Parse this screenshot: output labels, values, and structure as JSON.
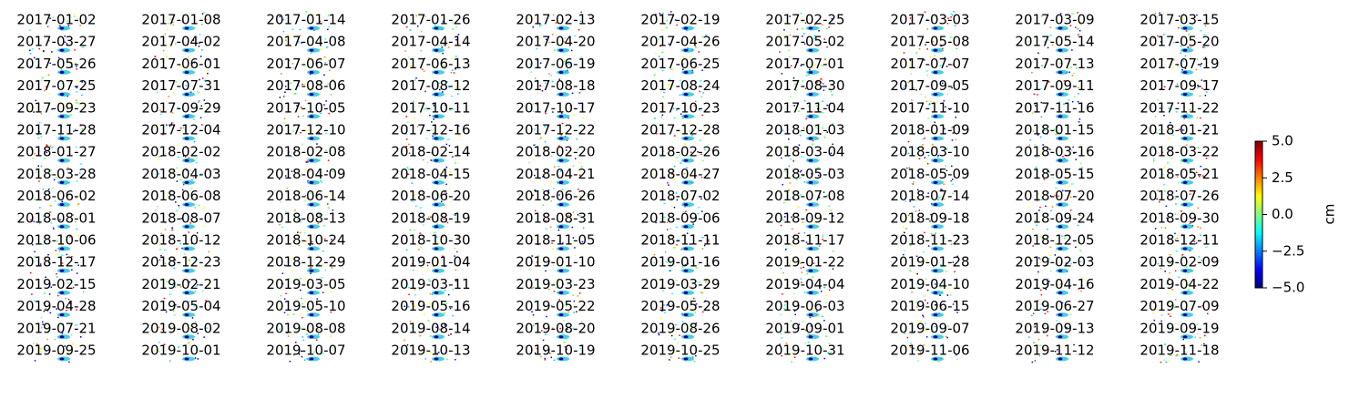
{
  "panels": [
    "2017-01-02",
    "2017-01-08",
    "2017-01-14",
    "2017-01-26",
    "2017-02-13",
    "2017-02-19",
    "2017-02-25",
    "2017-03-03",
    "2017-03-09",
    "2017-03-15",
    "2017-03-27",
    "2017-04-02",
    "2017-04-08",
    "2017-04-14",
    "2017-04-20",
    "2017-04-26",
    "2017-05-02",
    "2017-05-08",
    "2017-05-14",
    "2017-05-20",
    "2017-05-26",
    "2017-06-01",
    "2017-06-07",
    "2017-06-13",
    "2017-06-19",
    "2017-06-25",
    "2017-07-01",
    "2017-07-07",
    "2017-07-13",
    "2017-07-19",
    "2017-07-25",
    "2017-07-31",
    "2017-08-06",
    "2017-08-12",
    "2017-08-18",
    "2017-08-24",
    "2017-08-30",
    "2017-09-05",
    "2017-09-11",
    "2017-09-17",
    "2017-09-23",
    "2017-09-29",
    "2017-10-05",
    "2017-10-11",
    "2017-10-17",
    "2017-10-23",
    "2017-11-04",
    "2017-11-10",
    "2017-11-16",
    "2017-11-22",
    "2017-11-28",
    "2017-12-04",
    "2017-12-10",
    "2017-12-16",
    "2017-12-22",
    "2017-12-28",
    "2018-01-03",
    "2018-01-09",
    "2018-01-15",
    "2018-01-21",
    "2018-01-27",
    "2018-02-02",
    "2018-02-08",
    "2018-02-14",
    "2018-02-20",
    "2018-02-26",
    "2018-03-04",
    "2018-03-10",
    "2018-03-16",
    "2018-03-22",
    "2018-03-28",
    "2018-04-03",
    "2018-04-09",
    "2018-04-15",
    "2018-04-21",
    "2018-04-27",
    "2018-05-03",
    "2018-05-09",
    "2018-05-15",
    "2018-05-21",
    "2018-06-02",
    "2018-06-08",
    "2018-06-14",
    "2018-06-20",
    "2018-06-26",
    "2018-07-02",
    "2018-07-08",
    "2018-07-14",
    "2018-07-20",
    "2018-07-26",
    "2018-08-01",
    "2018-08-07",
    "2018-08-13",
    "2018-08-19",
    "2018-08-31",
    "2018-09-06",
    "2018-09-12",
    "2018-09-18",
    "2018-09-24",
    "2018-09-30",
    "2018-10-06",
    "2018-10-12",
    "2018-10-24",
    "2018-10-30",
    "2018-11-05",
    "2018-11-11",
    "2018-11-17",
    "2018-11-23",
    "2018-12-05",
    "2018-12-11",
    "2018-12-17",
    "2018-12-23",
    "2018-12-29",
    "2019-01-04",
    "2019-01-10",
    "2019-01-16",
    "2019-01-22",
    "2019-01-28",
    "2019-02-03",
    "2019-02-09",
    "2019-02-15",
    "2019-02-21",
    "2019-03-05",
    "2019-03-11",
    "2019-03-23",
    "2019-03-29",
    "2019-04-04",
    "2019-04-10",
    "2019-04-16",
    "2019-04-22",
    "2019-04-28",
    "2019-05-04",
    "2019-05-10",
    "2019-05-16",
    "2019-05-22",
    "2019-05-28",
    "2019-06-03",
    "2019-06-15",
    "2019-06-27",
    "2019-07-09",
    "2019-07-21",
    "2019-08-02",
    "2019-08-08",
    "2019-08-14",
    "2019-08-20",
    "2019-08-26",
    "2019-09-01",
    "2019-09-07",
    "2019-09-13",
    "2019-09-19",
    "2019-09-25",
    "2019-10-01",
    "2019-10-07",
    "2019-10-13",
    "2019-10-19",
    "2019-10-25",
    "2019-10-31",
    "2019-11-06",
    "2019-11-12",
    "2019-11-18"
  ],
  "colorbar": {
    "label": "cm",
    "lim": [
      -5,
      5
    ],
    "ticks": [
      {
        "value": 5,
        "label": "5.0"
      },
      {
        "value": 2.5,
        "label": "2.5"
      },
      {
        "value": 0,
        "label": "0.0"
      },
      {
        "value": -2.5,
        "label": "−2.5"
      },
      {
        "value": -5,
        "label": "−5.0"
      }
    ]
  }
}
